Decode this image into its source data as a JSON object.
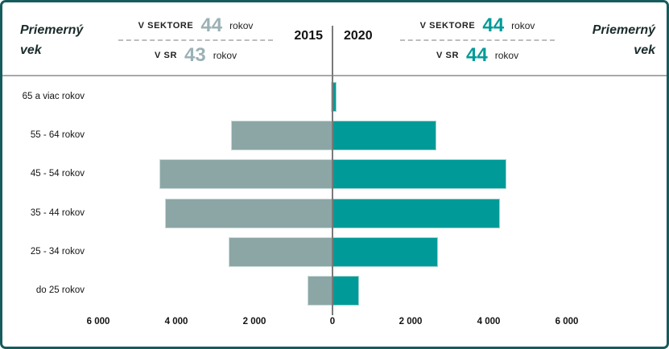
{
  "header": {
    "title_left": {
      "line1": "Priemerný",
      "line2": "vek"
    },
    "title_right": {
      "line1": "Priemerný",
      "line2": "vek"
    },
    "year_left": "2015",
    "year_right": "2020",
    "left_stats": {
      "sector_label": "V SEKTORE",
      "sector_value": "44",
      "sector_unit": "rokov",
      "sr_label": "V SR",
      "sr_value": "43",
      "sr_unit": "rokov"
    },
    "right_stats": {
      "sector_label": "V SEKTORE",
      "sector_value": "44",
      "sector_unit": "rokov",
      "sr_label": "V SR",
      "sr_value": "44",
      "sr_unit": "rokov"
    }
  },
  "chart_data": {
    "type": "bar",
    "subtype": "population-pyramid",
    "orientation": "horizontal",
    "title": "",
    "categories": [
      "65 a viac rokov",
      "55 - 64 rokov",
      "45 - 54 rokov",
      "35 - 44 rokov",
      "25 - 34 rokov",
      "do 25 rokov"
    ],
    "series": [
      {
        "name": "2015",
        "color": "#8ca6a6",
        "side": "left",
        "values": [
          40,
          2600,
          4430,
          4290,
          2650,
          640
        ]
      },
      {
        "name": "2020",
        "color": "#009b98",
        "side": "right",
        "values": [
          100,
          2650,
          4450,
          4290,
          2700,
          680
        ]
      }
    ],
    "x_ticks": [
      {
        "value": -6000,
        "label": "6 000"
      },
      {
        "value": -4000,
        "label": "4 000"
      },
      {
        "value": -2000,
        "label": "2 000"
      },
      {
        "value": 0,
        "label": "0"
      },
      {
        "value": 2000,
        "label": "2 000"
      },
      {
        "value": 4000,
        "label": "4 000"
      },
      {
        "value": 6000,
        "label": "6 000"
      }
    ],
    "axis_range": [
      -6000,
      6000
    ],
    "grid": false,
    "legend_position": "header-years"
  },
  "colors": {
    "frame_border": "#175c5c",
    "bar_2015": "#8ca6a6",
    "bar_2020": "#009b98",
    "value_2015": "#9bb1b6",
    "value_2020": "#009b98",
    "axis_line": "#7a7a7a",
    "separator": "#a8a8a8",
    "text": "#1a1a1a"
  }
}
